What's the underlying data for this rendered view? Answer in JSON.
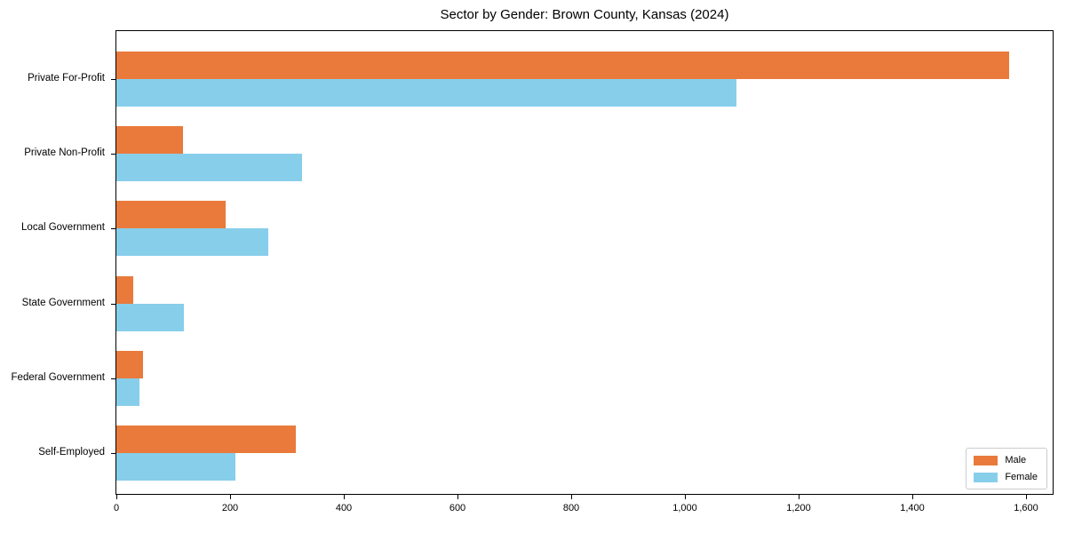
{
  "chart_data": {
    "type": "bar",
    "orientation": "horizontal",
    "title": "Sector by Gender: Brown County, Kansas (2024)",
    "categories": [
      "Private For-Profit",
      "Private Non-Profit",
      "Local Government",
      "State Government",
      "Federal Government",
      "Self-Employed"
    ],
    "series": [
      {
        "name": "Male",
        "color": "#E97A3B",
        "values": [
          1570,
          117,
          192,
          29,
          47,
          315
        ]
      },
      {
        "name": "Female",
        "color": "#87CEEB",
        "values": [
          1090,
          327,
          267,
          118,
          40,
          210
        ]
      }
    ],
    "xlabel": "",
    "ylabel": "",
    "xlim": [
      0,
      1650
    ],
    "x_ticks": [
      0,
      200,
      400,
      600,
      800,
      1000,
      1200,
      1400,
      1600
    ],
    "x_tick_labels": [
      "0",
      "200",
      "400",
      "600",
      "800",
      "1,000",
      "1,200",
      "1,400",
      "1,600"
    ],
    "grid": false,
    "legend_position": "lower right",
    "axis_color": "#000000",
    "background_color": "#ffffff"
  }
}
